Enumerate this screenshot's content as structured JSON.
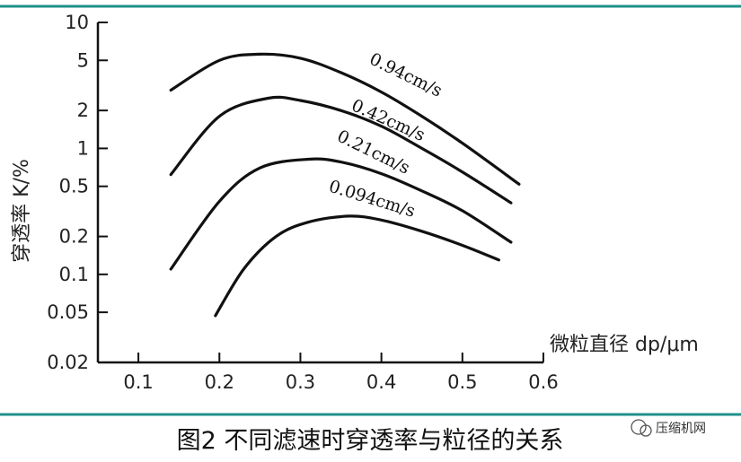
{
  "figure": {
    "caption": "图2 不同滤速时穿透率与粒径的关系",
    "watermark": "压缩机网",
    "rule_color": "#1f8f8a"
  },
  "chart_data": {
    "type": "line",
    "xlabel": "微粒直径 dp/μm",
    "ylabel": "穿透率 K/%",
    "xlim": [
      0.05,
      0.6
    ],
    "ylim": [
      0.02,
      10
    ],
    "y_scale": "log",
    "x_ticks": [
      "0.1",
      "0.2",
      "0.3",
      "0.4",
      "0.5",
      "0.6"
    ],
    "y_ticks": [
      "10",
      "5",
      "2",
      "1",
      "0.5",
      "0.2",
      "0.1",
      "0.05",
      "0.02"
    ],
    "grid": false,
    "series": [
      {
        "name": "0.94cm/s",
        "x": [
          0.14,
          0.2,
          0.25,
          0.3,
          0.35,
          0.4,
          0.45,
          0.5,
          0.57
        ],
        "y": [
          2.9,
          5.0,
          5.6,
          5.2,
          4.0,
          2.8,
          1.8,
          1.1,
          0.52
        ]
      },
      {
        "name": "0.42cm/s",
        "x": [
          0.14,
          0.2,
          0.26,
          0.3,
          0.35,
          0.4,
          0.45,
          0.5,
          0.56
        ],
        "y": [
          0.62,
          1.8,
          2.5,
          2.4,
          2.0,
          1.5,
          1.0,
          0.65,
          0.37
        ]
      },
      {
        "name": "0.21cm/s",
        "x": [
          0.14,
          0.2,
          0.25,
          0.31,
          0.35,
          0.4,
          0.45,
          0.5,
          0.56
        ],
        "y": [
          0.11,
          0.38,
          0.7,
          0.82,
          0.78,
          0.63,
          0.46,
          0.32,
          0.18
        ]
      },
      {
        "name": "0.094cm/s",
        "x": [
          0.195,
          0.23,
          0.27,
          0.31,
          0.36,
          0.4,
          0.45,
          0.5,
          0.545
        ],
        "y": [
          0.047,
          0.11,
          0.2,
          0.26,
          0.29,
          0.27,
          0.22,
          0.17,
          0.13
        ]
      }
    ]
  }
}
